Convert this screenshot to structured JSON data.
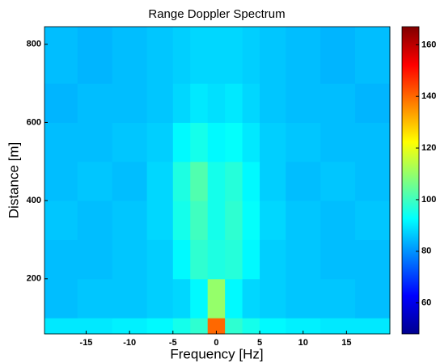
{
  "chart_data": {
    "type": "heatmap",
    "title": "Range Doppler Spectrum",
    "x_label": "Frequency [Hz]",
    "y_label": "Distance [m]",
    "xbins": [
      -19.8,
      -16,
      -12,
      -8,
      -5,
      -3,
      -1,
      1,
      3,
      5,
      8,
      12,
      16,
      20
    ],
    "ybins": [
      59,
      100,
      200,
      300,
      400,
      500,
      600,
      700,
      845
    ],
    "values": [
      [
        90,
        90,
        91,
        92,
        95,
        98,
        140,
        98,
        95,
        92,
        91,
        90,
        90
      ],
      [
        85,
        86,
        86,
        87,
        88,
        92,
        110,
        92,
        88,
        87,
        86,
        86,
        85
      ],
      [
        85,
        85,
        86,
        87,
        92,
        98,
        96,
        97,
        92,
        87,
        86,
        85,
        85
      ],
      [
        86,
        85,
        86,
        88,
        95,
        100,
        95,
        98,
        93,
        88,
        86,
        85,
        86
      ],
      [
        85,
        86,
        85,
        88,
        96,
        102,
        95,
        97,
        92,
        87,
        85,
        86,
        85
      ],
      [
        85,
        85,
        86,
        87,
        92,
        95,
        92,
        93,
        90,
        87,
        86,
        85,
        85
      ],
      [
        84,
        85,
        85,
        86,
        88,
        90,
        89,
        90,
        88,
        86,
        85,
        85,
        84
      ],
      [
        85,
        84,
        85,
        86,
        87,
        88,
        88,
        88,
        87,
        86,
        85,
        84,
        85
      ]
    ],
    "xlim": [
      -19.8,
      20
    ],
    "xticks": [
      -15,
      -10,
      -5,
      0,
      5,
      10,
      15
    ],
    "ylim": [
      59,
      845
    ],
    "yticks": [
      200,
      400,
      600,
      800
    ],
    "clim": [
      48,
      167
    ],
    "cticks": [
      60,
      80,
      100,
      120,
      140,
      160
    ],
    "colormap": "jet"
  }
}
